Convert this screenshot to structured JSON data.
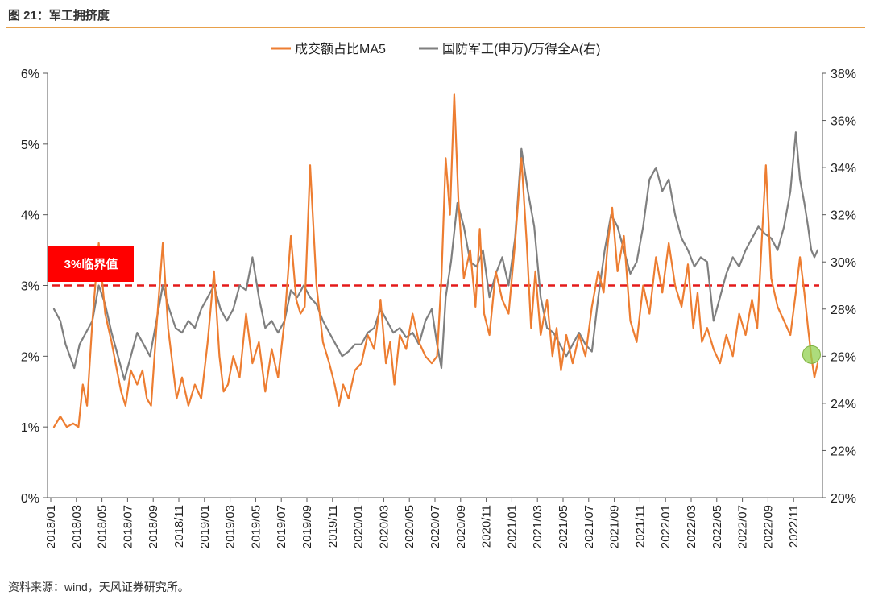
{
  "figure": {
    "title": "图 21：军工拥挤度",
    "source": "资料来源：wind，天风证券研究所。"
  },
  "colors": {
    "orange": "#ed7d31",
    "gray": "#7f7f7f",
    "threshold": "#e41a1a",
    "badge_bg": "#ff0000",
    "marker": "#92d050",
    "rule": "#e8a04a"
  },
  "chart_data": {
    "type": "line",
    "legend_position": "top-center",
    "grid": false,
    "y_left": {
      "min": 0,
      "max": 6,
      "ticks": [
        "0%",
        "1%",
        "2%",
        "3%",
        "4%",
        "5%",
        "6%"
      ]
    },
    "y_right": {
      "min": 20,
      "max": 38,
      "ticks": [
        "20%",
        "22%",
        "24%",
        "26%",
        "28%",
        "30%",
        "32%",
        "34%",
        "36%",
        "38%"
      ]
    },
    "x_tick_labels": [
      "2018/01",
      "2018/03",
      "2018/05",
      "2018/07",
      "2018/09",
      "2018/11",
      "2019/01",
      "2019/03",
      "2019/05",
      "2019/07",
      "2019/09",
      "2019/11",
      "2020/01",
      "2020/03",
      "2020/05",
      "2020/07",
      "2020/09",
      "2020/11",
      "2021/01",
      "2021/03",
      "2021/05",
      "2021/07",
      "2021/09",
      "2021/11",
      "2022/01",
      "2022/03",
      "2022/05",
      "2022/07",
      "2022/09",
      "2022/11"
    ],
    "x_range": [
      "2018/01",
      "2022/12"
    ],
    "threshold": {
      "value": 3,
      "label": "3%临界值"
    },
    "series": [
      {
        "name": "成交额占比MA5",
        "axis": "left",
        "points": [
          [
            "2018/01",
            1.0
          ],
          [
            "2018/01",
            1.15
          ],
          [
            "2018/02",
            1.0
          ],
          [
            "2018/02",
            1.05
          ],
          [
            "2018/03",
            1.0
          ],
          [
            "2018/03",
            1.6
          ],
          [
            "2018/03",
            1.3
          ],
          [
            "2018/04",
            2.5
          ],
          [
            "2018/04",
            3.6
          ],
          [
            "2018/05",
            2.6
          ],
          [
            "2018/05",
            2.2
          ],
          [
            "2018/06",
            1.8
          ],
          [
            "2018/06",
            1.5
          ],
          [
            "2018/06",
            1.3
          ],
          [
            "2018/07",
            1.8
          ],
          [
            "2018/07",
            1.6
          ],
          [
            "2018/08",
            1.8
          ],
          [
            "2018/08",
            1.4
          ],
          [
            "2018/08",
            1.3
          ],
          [
            "2018/09",
            2.4
          ],
          [
            "2018/09",
            3.6
          ],
          [
            "2018/10",
            2.4
          ],
          [
            "2018/10",
            1.9
          ],
          [
            "2018/10",
            1.4
          ],
          [
            "2018/11",
            1.7
          ],
          [
            "2018/11",
            1.3
          ],
          [
            "2018/12",
            1.6
          ],
          [
            "2018/12",
            1.4
          ],
          [
            "2019/01",
            2.2
          ],
          [
            "2019/01",
            3.2
          ],
          [
            "2019/02",
            2.0
          ],
          [
            "2019/02",
            1.5
          ],
          [
            "2019/02",
            1.6
          ],
          [
            "2019/03",
            2.0
          ],
          [
            "2019/03",
            1.7
          ],
          [
            "2019/04",
            2.6
          ],
          [
            "2019/04",
            1.9
          ],
          [
            "2019/05",
            2.2
          ],
          [
            "2019/05",
            1.5
          ],
          [
            "2019/06",
            2.1
          ],
          [
            "2019/06",
            1.7
          ],
          [
            "2019/07",
            2.5
          ],
          [
            "2019/07",
            3.7
          ],
          [
            "2019/08",
            2.8
          ],
          [
            "2019/08",
            2.6
          ],
          [
            "2019/08",
            2.7
          ],
          [
            "2019/09",
            4.7
          ],
          [
            "2019/09",
            3.0
          ],
          [
            "2019/10",
            2.2
          ],
          [
            "2019/10",
            1.9
          ],
          [
            "2019/11",
            1.6
          ],
          [
            "2019/11",
            1.3
          ],
          [
            "2019/11",
            1.6
          ],
          [
            "2019/12",
            1.4
          ],
          [
            "2019/12",
            1.8
          ],
          [
            "2020/01",
            1.9
          ],
          [
            "2020/01",
            2.3
          ],
          [
            "2020/02",
            2.1
          ],
          [
            "2020/02",
            2.8
          ],
          [
            "2020/03",
            1.9
          ],
          [
            "2020/03",
            2.2
          ],
          [
            "2020/03",
            1.6
          ],
          [
            "2020/04",
            2.3
          ],
          [
            "2020/04",
            2.1
          ],
          [
            "2020/05",
            2.6
          ],
          [
            "2020/05",
            2.2
          ],
          [
            "2020/06",
            2.0
          ],
          [
            "2020/06",
            1.9
          ],
          [
            "2020/07",
            2.0
          ],
          [
            "2020/07",
            3.1
          ],
          [
            "2020/07",
            4.8
          ],
          [
            "2020/08",
            4.0
          ],
          [
            "2020/08",
            5.7
          ],
          [
            "2020/08",
            4.2
          ],
          [
            "2020/09",
            3.1
          ],
          [
            "2020/09",
            3.5
          ],
          [
            "2020/10",
            2.7
          ],
          [
            "2020/10",
            3.8
          ],
          [
            "2020/10",
            2.6
          ],
          [
            "2020/11",
            2.3
          ],
          [
            "2020/11",
            3.2
          ],
          [
            "2020/12",
            2.8
          ],
          [
            "2020/12",
            2.6
          ],
          [
            "2021/01",
            3.6
          ],
          [
            "2021/01",
            4.8
          ],
          [
            "2021/02",
            3.6
          ],
          [
            "2021/02",
            2.4
          ],
          [
            "2021/02",
            3.2
          ],
          [
            "2021/03",
            2.3
          ],
          [
            "2021/03",
            2.8
          ],
          [
            "2021/04",
            2.0
          ],
          [
            "2021/04",
            2.4
          ],
          [
            "2021/04",
            1.8
          ],
          [
            "2021/05",
            2.3
          ],
          [
            "2021/05",
            1.9
          ],
          [
            "2021/06",
            2.3
          ],
          [
            "2021/06",
            2.0
          ],
          [
            "2021/07",
            2.7
          ],
          [
            "2021/07",
            3.2
          ],
          [
            "2021/08",
            2.9
          ],
          [
            "2021/08",
            3.6
          ],
          [
            "2021/08",
            4.1
          ],
          [
            "2021/09",
            3.2
          ],
          [
            "2021/09",
            3.7
          ],
          [
            "2021/10",
            2.5
          ],
          [
            "2021/10",
            2.2
          ],
          [
            "2021/11",
            3.0
          ],
          [
            "2021/11",
            2.6
          ],
          [
            "2021/12",
            3.4
          ],
          [
            "2021/12",
            2.9
          ],
          [
            "2022/01",
            3.6
          ],
          [
            "2022/01",
            3.0
          ],
          [
            "2022/02",
            2.7
          ],
          [
            "2022/02",
            3.3
          ],
          [
            "2022/03",
            2.4
          ],
          [
            "2022/03",
            2.9
          ],
          [
            "2022/03",
            2.2
          ],
          [
            "2022/04",
            2.4
          ],
          [
            "2022/04",
            2.1
          ],
          [
            "2022/05",
            1.9
          ],
          [
            "2022/05",
            2.3
          ],
          [
            "2022/06",
            2.0
          ],
          [
            "2022/06",
            2.6
          ],
          [
            "2022/07",
            2.3
          ],
          [
            "2022/07",
            2.8
          ],
          [
            "2022/08",
            2.4
          ],
          [
            "2022/08",
            3.6
          ],
          [
            "2022/08",
            4.7
          ],
          [
            "2022/09",
            3.1
          ],
          [
            "2022/09",
            2.7
          ],
          [
            "2022/10",
            2.5
          ],
          [
            "2022/10",
            2.3
          ],
          [
            "2022/11",
            2.9
          ],
          [
            "2022/11",
            3.4
          ],
          [
            "2022/11",
            2.9
          ],
          [
            "2022/12",
            2.4
          ],
          [
            "2022/12",
            2.0
          ],
          [
            "2022/12",
            1.7
          ],
          [
            "2022/12",
            1.9
          ]
        ]
      },
      {
        "name": "国防军工(申万)/万得全A(右)",
        "axis": "right",
        "points": [
          [
            "2018/01",
            28.0
          ],
          [
            "2018/01",
            27.5
          ],
          [
            "2018/02",
            26.5
          ],
          [
            "2018/02",
            26.0
          ],
          [
            "2018/02",
            25.5
          ],
          [
            "2018/03",
            26.5
          ],
          [
            "2018/03",
            27.0
          ],
          [
            "2018/04",
            27.5
          ],
          [
            "2018/04",
            29.0
          ],
          [
            "2018/05",
            28.2
          ],
          [
            "2018/05",
            27.0
          ],
          [
            "2018/06",
            26.0
          ],
          [
            "2018/06",
            25.0
          ],
          [
            "2018/07",
            26.0
          ],
          [
            "2018/07",
            27.0
          ],
          [
            "2018/08",
            26.5
          ],
          [
            "2018/08",
            26.0
          ],
          [
            "2018/09",
            27.5
          ],
          [
            "2018/09",
            29.0
          ],
          [
            "2018/10",
            28.0
          ],
          [
            "2018/10",
            27.2
          ],
          [
            "2018/11",
            27.0
          ],
          [
            "2018/11",
            27.5
          ],
          [
            "2018/12",
            27.2
          ],
          [
            "2018/12",
            28.0
          ],
          [
            "2019/01",
            28.5
          ],
          [
            "2019/01",
            29.0
          ],
          [
            "2019/02",
            28.0
          ],
          [
            "2019/02",
            27.5
          ],
          [
            "2019/03",
            28.0
          ],
          [
            "2019/03",
            29.0
          ],
          [
            "2019/04",
            28.8
          ],
          [
            "2019/04",
            30.2
          ],
          [
            "2019/05",
            28.5
          ],
          [
            "2019/05",
            27.2
          ],
          [
            "2019/06",
            27.5
          ],
          [
            "2019/06",
            27.0
          ],
          [
            "2019/07",
            27.5
          ],
          [
            "2019/07",
            28.8
          ],
          [
            "2019/08",
            28.5
          ],
          [
            "2019/08",
            29.0
          ],
          [
            "2019/09",
            28.5
          ],
          [
            "2019/09",
            28.2
          ],
          [
            "2019/10",
            27.5
          ],
          [
            "2019/10",
            27.0
          ],
          [
            "2019/11",
            26.5
          ],
          [
            "2019/11",
            26.0
          ],
          [
            "2019/12",
            26.2
          ],
          [
            "2019/12",
            26.5
          ],
          [
            "2020/01",
            26.5
          ],
          [
            "2020/01",
            27.0
          ],
          [
            "2020/02",
            27.2
          ],
          [
            "2020/02",
            28.0
          ],
          [
            "2020/03",
            27.5
          ],
          [
            "2020/03",
            27.0
          ],
          [
            "2020/04",
            27.2
          ],
          [
            "2020/04",
            26.8
          ],
          [
            "2020/05",
            27.0
          ],
          [
            "2020/05",
            26.5
          ],
          [
            "2020/06",
            27.5
          ],
          [
            "2020/06",
            28.0
          ],
          [
            "2020/07",
            26.5
          ],
          [
            "2020/07",
            25.5
          ],
          [
            "2020/07",
            28.5
          ],
          [
            "2020/08",
            30.0
          ],
          [
            "2020/08",
            32.5
          ],
          [
            "2020/09",
            31.5
          ],
          [
            "2020/09",
            30.0
          ],
          [
            "2020/10",
            29.8
          ],
          [
            "2020/10",
            30.5
          ],
          [
            "2020/11",
            28.5
          ],
          [
            "2020/11",
            29.5
          ],
          [
            "2020/12",
            30.2
          ],
          [
            "2020/12",
            29.0
          ],
          [
            "2021/01",
            31.0
          ],
          [
            "2021/01",
            34.8
          ],
          [
            "2021/02",
            33.0
          ],
          [
            "2021/02",
            31.5
          ],
          [
            "2021/03",
            28.5
          ],
          [
            "2021/03",
            27.2
          ],
          [
            "2021/04",
            27.0
          ],
          [
            "2021/04",
            26.5
          ],
          [
            "2021/05",
            26.0
          ],
          [
            "2021/05",
            26.5
          ],
          [
            "2021/06",
            27.0
          ],
          [
            "2021/06",
            26.5
          ],
          [
            "2021/07",
            26.2
          ],
          [
            "2021/07",
            28.5
          ],
          [
            "2021/08",
            30.5
          ],
          [
            "2021/08",
            32.0
          ],
          [
            "2021/09",
            31.5
          ],
          [
            "2021/09",
            30.5
          ],
          [
            "2021/10",
            29.5
          ],
          [
            "2021/10",
            30.0
          ],
          [
            "2021/11",
            31.5
          ],
          [
            "2021/11",
            33.5
          ],
          [
            "2021/12",
            34.0
          ],
          [
            "2021/12",
            33.0
          ],
          [
            "2022/01",
            33.5
          ],
          [
            "2022/01",
            32.0
          ],
          [
            "2022/02",
            31.0
          ],
          [
            "2022/02",
            30.5
          ],
          [
            "2022/03",
            29.8
          ],
          [
            "2022/03",
            30.2
          ],
          [
            "2022/04",
            30.0
          ],
          [
            "2022/04",
            27.5
          ],
          [
            "2022/05",
            28.5
          ],
          [
            "2022/05",
            29.5
          ],
          [
            "2022/06",
            30.2
          ],
          [
            "2022/06",
            29.8
          ],
          [
            "2022/07",
            30.5
          ],
          [
            "2022/07",
            31.0
          ],
          [
            "2022/08",
            31.5
          ],
          [
            "2022/08",
            31.2
          ],
          [
            "2022/09",
            31.0
          ],
          [
            "2022/09",
            30.5
          ],
          [
            "2022/10",
            31.5
          ],
          [
            "2022/10",
            33.0
          ],
          [
            "2022/11",
            35.5
          ],
          [
            "2022/11",
            33.5
          ],
          [
            "2022/11",
            32.5
          ],
          [
            "2022/12",
            31.5
          ],
          [
            "2022/12",
            30.5
          ],
          [
            "2022/12",
            30.2
          ],
          [
            "2022/12",
            30.5
          ]
        ]
      }
    ],
    "marker": {
      "date": "2022/12",
      "value": 2.0
    }
  }
}
